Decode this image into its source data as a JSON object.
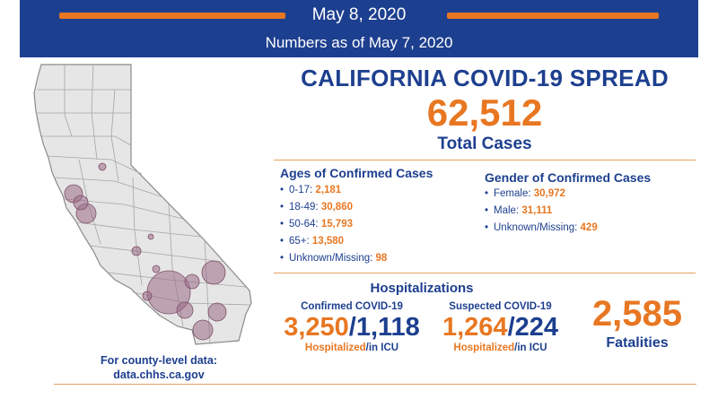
{
  "header": {
    "date": "May 8, 2020",
    "as_of": "Numbers as of May 7, 2020",
    "colors": {
      "navy": "#1d3f8f",
      "orange": "#e87722"
    }
  },
  "title": "CALIFORNIA COVID-19 SPREAD",
  "total": {
    "value": "62,512",
    "label": "Total Cases"
  },
  "ages": {
    "heading": "Ages of Confirmed Cases",
    "items": [
      {
        "label": "0-17:",
        "value": "2,181"
      },
      {
        "label": "18-49:",
        "value": "30,860"
      },
      {
        "label": "50-64:",
        "value": "15,793"
      },
      {
        "label": "65+:",
        "value": "13,580"
      },
      {
        "label": "Unknown/Missing:",
        "value": "98"
      }
    ]
  },
  "gender": {
    "heading": "Gender of Confirmed Cases",
    "items": [
      {
        "label": "Female:",
        "value": "30,972"
      },
      {
        "label": "Male:",
        "value": "31,111"
      },
      {
        "label": "Unknown/Missing:",
        "value": "429"
      }
    ]
  },
  "hospitalizations": {
    "heading": "Hospitalizations",
    "confirmed": {
      "label": "Confirmed COVID-19",
      "hospitalized": "3,250",
      "icu": "1,118",
      "sub_hosp": "Hospitalized",
      "sub_icu": "/in ICU"
    },
    "suspected": {
      "label": "Suspected COVID-19",
      "hospitalized": "1,264",
      "icu": "224",
      "sub_hosp": "Hospitalized",
      "sub_icu": "/in ICU"
    }
  },
  "fatalities": {
    "value": "2,585",
    "label": "Fatalities"
  },
  "map_note": {
    "line1": "For county-level data:",
    "line2": "data.chhs.ca.gov"
  },
  "map": {
    "icon": "california-county-map",
    "bubble_color": "#9b6b86"
  }
}
